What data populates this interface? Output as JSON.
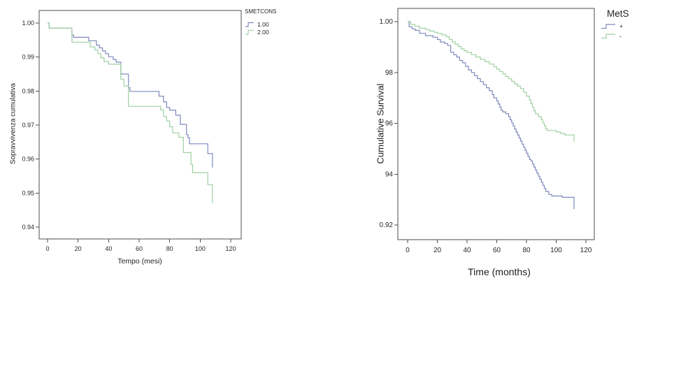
{
  "page": {
    "background": "#ffffff"
  },
  "colors": {
    "series_blue": "#7f89bd",
    "series_green": "#9fd0a2",
    "axis": "#4d4d4d",
    "text": "#262626"
  },
  "chart_data": [
    {
      "type": "line",
      "subtype": "kaplan-meier-step",
      "title": "",
      "legend_title": "SMETCONS",
      "xlabel": "Tempo (mesi)",
      "ylabel": "Sopravvivenza cumulativa",
      "x_ticks": [
        0,
        20,
        40,
        60,
        80,
        100,
        120
      ],
      "y_ticks": [
        {
          "label": "1.00",
          "value": 1.0
        },
        {
          "label": "0.99",
          "value": 0.99
        },
        {
          "label": "0.98",
          "value": 0.98
        },
        {
          "label": "0.97",
          "value": 0.97
        },
        {
          "label": "0.96",
          "value": 0.96
        },
        {
          "label": "0.95",
          "value": 0.95
        },
        {
          "label": "0.94",
          "value": 0.94
        }
      ],
      "xlim": [
        -5.5,
        127
      ],
      "ylim": [
        0.9365,
        1.0037
      ],
      "grid": false,
      "legend_position": "outside-top-right",
      "series": [
        {
          "name": "1.00",
          "color": "#7f89bd",
          "points": [
            [
              0,
              1.0
            ],
            [
              1,
              0.9985
            ],
            [
              16,
              0.9965
            ],
            [
              17,
              0.9958
            ],
            [
              27,
              0.9948
            ],
            [
              32,
              0.9935
            ],
            [
              34,
              0.9927
            ],
            [
              36,
              0.9918
            ],
            [
              38,
              0.991
            ],
            [
              40,
              0.9901
            ],
            [
              43,
              0.9893
            ],
            [
              45,
              0.9885
            ],
            [
              48,
              0.985
            ],
            [
              53,
              0.981
            ],
            [
              54,
              0.9799
            ],
            [
              73,
              0.9785
            ],
            [
              76,
              0.9768
            ],
            [
              78,
              0.9752
            ],
            [
              80,
              0.9744
            ],
            [
              84,
              0.9729
            ],
            [
              87,
              0.9702
            ],
            [
              91,
              0.9672
            ],
            [
              92,
              0.9663
            ],
            [
              93,
              0.9645
            ],
            [
              105,
              0.9616
            ],
            [
              108,
              0.9575
            ]
          ]
        },
        {
          "name": "2.00",
          "color": "#9fd0a2",
          "points": [
            [
              0,
              1.0
            ],
            [
              1,
              0.9985
            ],
            [
              16,
              0.9944
            ],
            [
              28,
              0.993
            ],
            [
              31,
              0.9921
            ],
            [
              33,
              0.991
            ],
            [
              35,
              0.9898
            ],
            [
              37,
              0.9887
            ],
            [
              40,
              0.9879
            ],
            [
              48,
              0.9835
            ],
            [
              50,
              0.9815
            ],
            [
              53,
              0.9755
            ],
            [
              74,
              0.9745
            ],
            [
              76,
              0.9725
            ],
            [
              78,
              0.9712
            ],
            [
              80,
              0.9695
            ],
            [
              82,
              0.9677
            ],
            [
              86,
              0.9664
            ],
            [
              89,
              0.9619
            ],
            [
              94,
              0.9585
            ],
            [
              95,
              0.956
            ],
            [
              105,
              0.9525
            ],
            [
              108,
              0.947
            ]
          ]
        }
      ]
    },
    {
      "type": "line",
      "subtype": "kaplan-meier-step",
      "title": "",
      "legend_title": "MetS",
      "xlabel": "Time (months)",
      "ylabel": "Cumulative Survival",
      "x_ticks": [
        0,
        20,
        40,
        60,
        80,
        100,
        120
      ],
      "y_ticks": [
        {
          "label": "1.00",
          "value": 1.0
        },
        {
          "label": "98",
          "value": 0.98
        },
        {
          "label": "96",
          "value": 0.96
        },
        {
          "label": "94",
          "value": 0.94
        },
        {
          "label": "0.92",
          "value": 0.92
        }
      ],
      "xlim": [
        -6.6,
        125.6
      ],
      "ylim": [
        0.9142,
        1.0052
      ],
      "grid": false,
      "legend_position": "outside-top-right",
      "series": [
        {
          "name": "+",
          "color": "#7f89bd",
          "points": [
            [
              0,
              1.0
            ],
            [
              1,
              0.998
            ],
            [
              3,
              0.9972
            ],
            [
              5,
              0.9966
            ],
            [
              8,
              0.9954
            ],
            [
              12,
              0.9945
            ],
            [
              17,
              0.9939
            ],
            [
              20,
              0.993
            ],
            [
              22,
              0.992
            ],
            [
              25,
              0.9914
            ],
            [
              27,
              0.9906
            ],
            [
              29,
              0.988
            ],
            [
              31,
              0.987
            ],
            [
              33,
              0.9861
            ],
            [
              35,
              0.9847
            ],
            [
              37,
              0.9838
            ],
            [
              39,
              0.9824
            ],
            [
              41,
              0.981
            ],
            [
              43,
              0.98
            ],
            [
              45,
              0.9788
            ],
            [
              47,
              0.9776
            ],
            [
              49,
              0.9764
            ],
            [
              51,
              0.9752
            ],
            [
              53,
              0.974
            ],
            [
              55,
              0.9728
            ],
            [
              57,
              0.9713
            ],
            [
              58,
              0.97
            ],
            [
              60,
              0.9688
            ],
            [
              61,
              0.9676
            ],
            [
              62,
              0.9664
            ],
            [
              63,
              0.9652
            ],
            [
              64,
              0.9645
            ],
            [
              66,
              0.9638
            ],
            [
              68,
              0.9626
            ],
            [
              69,
              0.9614
            ],
            [
              70,
              0.9602
            ],
            [
              71,
              0.959
            ],
            [
              72,
              0.9578
            ],
            [
              73,
              0.9566
            ],
            [
              74,
              0.9554
            ],
            [
              75,
              0.9542
            ],
            [
              76,
              0.953
            ],
            [
              77,
              0.9518
            ],
            [
              78,
              0.9506
            ],
            [
              79,
              0.9494
            ],
            [
              80,
              0.9482
            ],
            [
              81,
              0.947
            ],
            [
              82,
              0.9458
            ],
            [
              83,
              0.9452
            ],
            [
              84,
              0.944
            ],
            [
              85,
              0.9428
            ],
            [
              86,
              0.9416
            ],
            [
              87,
              0.9404
            ],
            [
              88,
              0.9392
            ],
            [
              89,
              0.938
            ],
            [
              90,
              0.9368
            ],
            [
              91,
              0.9356
            ],
            [
              92,
              0.9344
            ],
            [
              93,
              0.9332
            ],
            [
              95,
              0.932
            ],
            [
              97,
              0.9314
            ],
            [
              104,
              0.9309
            ],
            [
              112,
              0.9262
            ]
          ]
        },
        {
          "name": "-",
          "color": "#9fd0a2",
          "points": [
            [
              0,
              1.0
            ],
            [
              2,
              0.9989
            ],
            [
              5,
              0.9982
            ],
            [
              8,
              0.9975
            ],
            [
              12,
              0.9969
            ],
            [
              15,
              0.9963
            ],
            [
              18,
              0.9958
            ],
            [
              20,
              0.9954
            ],
            [
              23,
              0.9948
            ],
            [
              26,
              0.9941
            ],
            [
              28,
              0.993
            ],
            [
              30,
              0.992
            ],
            [
              32,
              0.9911
            ],
            [
              34,
              0.9902
            ],
            [
              36,
              0.9893
            ],
            [
              38,
              0.9886
            ],
            [
              40,
              0.9879
            ],
            [
              43,
              0.987
            ],
            [
              46,
              0.9861
            ],
            [
              49,
              0.9852
            ],
            [
              52,
              0.9843
            ],
            [
              55,
              0.9833
            ],
            [
              58,
              0.9822
            ],
            [
              60,
              0.9813
            ],
            [
              62,
              0.9804
            ],
            [
              64,
              0.9794
            ],
            [
              66,
              0.9784
            ],
            [
              68,
              0.9775
            ],
            [
              70,
              0.9765
            ],
            [
              72,
              0.9755
            ],
            [
              74,
              0.9746
            ],
            [
              76,
              0.9737
            ],
            [
              78,
              0.9722
            ],
            [
              80,
              0.9707
            ],
            [
              82,
              0.9692
            ],
            [
              83,
              0.9678
            ],
            [
              84,
              0.9664
            ],
            [
              85,
              0.965
            ],
            [
              86,
              0.9638
            ],
            [
              88,
              0.9626
            ],
            [
              90,
              0.9614
            ],
            [
              91,
              0.9602
            ],
            [
              92,
              0.959
            ],
            [
              93,
              0.9578
            ],
            [
              94,
              0.9572
            ],
            [
              100,
              0.9566
            ],
            [
              103,
              0.956
            ],
            [
              106,
              0.9554
            ],
            [
              112,
              0.9528
            ]
          ]
        }
      ]
    }
  ]
}
